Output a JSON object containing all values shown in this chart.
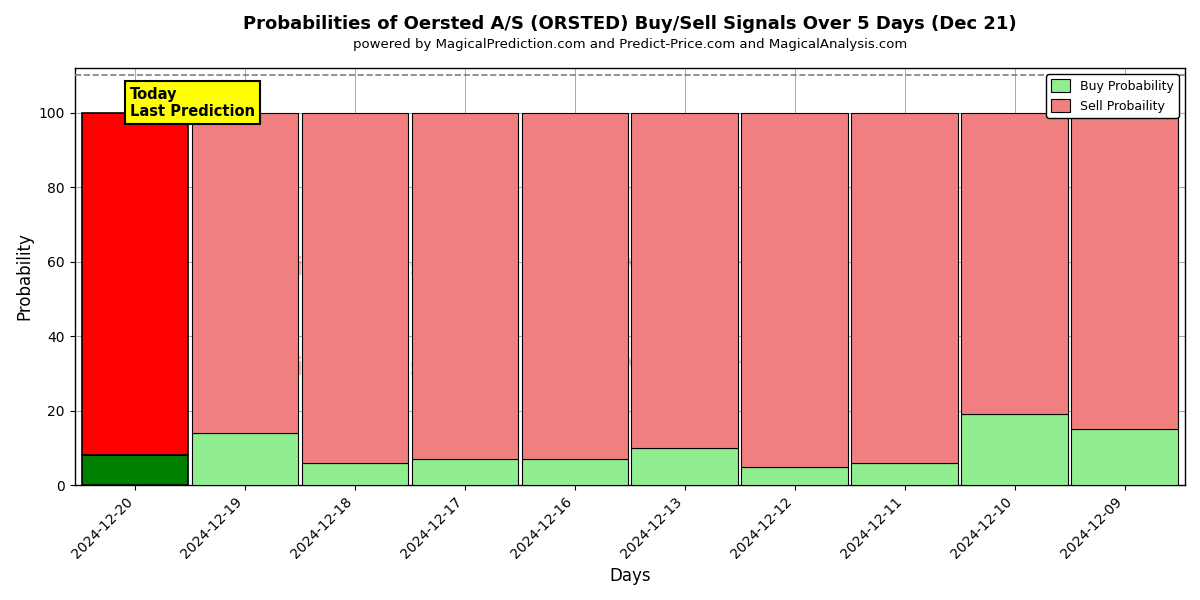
{
  "title": "Probabilities of Oersted A/S (ORSTED) Buy/Sell Signals Over 5 Days (Dec 21)",
  "subtitle": "powered by MagicalPrediction.com and Predict-Price.com and MagicalAnalysis.com",
  "xlabel": "Days",
  "ylabel": "Probability",
  "dates": [
    "2024-12-20",
    "2024-12-19",
    "2024-12-18",
    "2024-12-17",
    "2024-12-16",
    "2024-12-13",
    "2024-12-12",
    "2024-12-11",
    "2024-12-10",
    "2024-12-09"
  ],
  "buy_probs": [
    8,
    14,
    6,
    7,
    7,
    10,
    5,
    6,
    19,
    15
  ],
  "sell_probs": [
    92,
    86,
    94,
    93,
    93,
    90,
    95,
    94,
    81,
    85
  ],
  "today_buy_color": "#008000",
  "today_sell_color": "#FF0000",
  "other_buy_color": "#90EE90",
  "other_sell_color": "#F08080",
  "today_label_bg": "#FFFF00",
  "today_label_text": "Today\nLast Prediction",
  "legend_buy": "Buy Probability",
  "legend_sell": "Sell Probaility",
  "ylim": [
    0,
    112
  ],
  "dashed_line_y": 110,
  "watermark1": "MagicalAnalysis.com",
  "watermark2": "MagicalPrediction.com",
  "bar_width": 0.97,
  "figsize": [
    12.0,
    6.0
  ],
  "dpi": 100,
  "bg_color": "#ffffff"
}
